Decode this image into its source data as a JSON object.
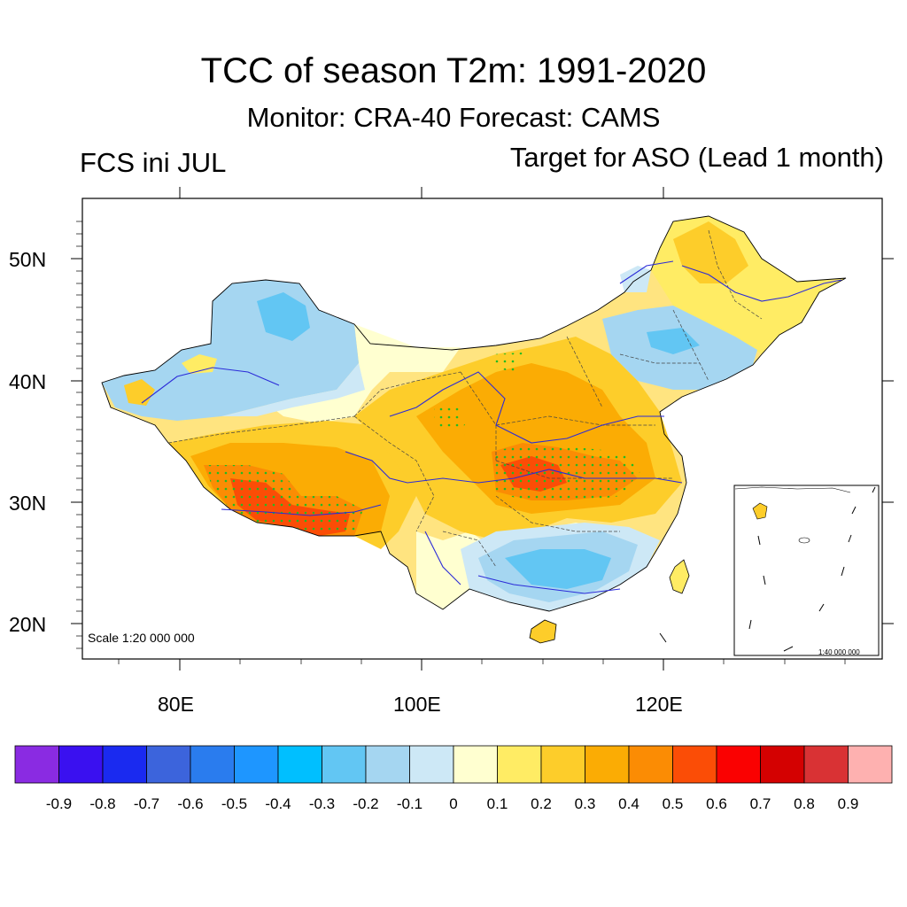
{
  "header": {
    "title": "TCC of season T2m: 1991-2020",
    "subtitle": "Monitor: CRA-40   Forecast: CAMS",
    "left_label": "FCS ini JUL",
    "right_label": "Target for ASO (Lead 1 month)"
  },
  "map": {
    "lat_labels": [
      "50N",
      "40N",
      "30N",
      "20N"
    ],
    "lon_labels": [
      "80E",
      "100E",
      "120E"
    ],
    "scale_note": "Scale 1:20 000 000",
    "inset_scale_note": "1:40 000 000",
    "colors": {
      "country_border": "#000000",
      "province_border": "#555555",
      "river": "#2b2bd8",
      "significance_dots": "#22bb22"
    }
  },
  "colorbar": {
    "colors": [
      "#8a2be2",
      "#3a10f0",
      "#1a2af0",
      "#3c64dc",
      "#2a7cee",
      "#1e96ff",
      "#00bfff",
      "#62c6f3",
      "#a5d6f1",
      "#cde8f6",
      "#ffffd0",
      "#ffec64",
      "#fdcd2a",
      "#fbac04",
      "#fb8c04",
      "#fb4d06",
      "#fa0101",
      "#d40101",
      "#d93234",
      "#feb1b0"
    ],
    "labels": [
      "-0.9",
      "-0.8",
      "-0.7",
      "-0.6",
      "-0.5",
      "-0.4",
      "-0.3",
      "-0.2",
      "-0.1",
      "0",
      "0.1",
      "0.2",
      "0.3",
      "0.4",
      "0.5",
      "0.6",
      "0.7",
      "0.8",
      "0.9"
    ]
  }
}
